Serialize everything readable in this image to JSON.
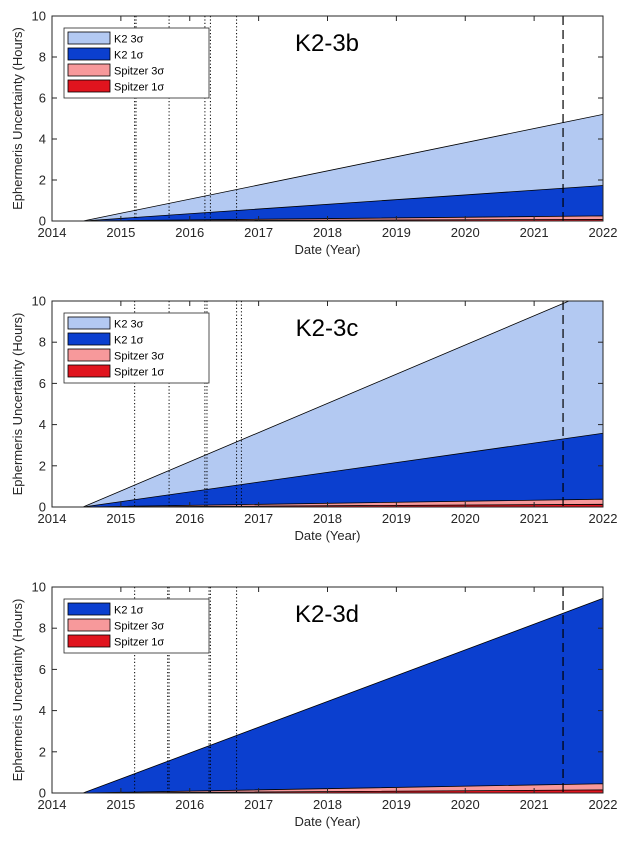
{
  "chart_data": [
    {
      "type": "area",
      "title": "K2-3b",
      "xlabel": "Date (Year)",
      "ylabel": "Ephermeris Uncertainty (Hours)",
      "xlim": [
        2014,
        2022
      ],
      "ylim": [
        0,
        10
      ],
      "xticks": [
        2014,
        2015,
        2016,
        2017,
        2018,
        2019,
        2020,
        2021,
        2022
      ],
      "yticks": [
        0,
        2,
        4,
        6,
        8,
        10
      ],
      "legend_position": "top-left",
      "x": [
        2014.45,
        2022.0
      ],
      "series": [
        {
          "name": "K2 3σ",
          "color": "#b3c9f2",
          "values": [
            0.0,
            5.2
          ]
        },
        {
          "name": "K2 1σ",
          "color": "#0b3fcf",
          "values": [
            0.0,
            1.73
          ]
        },
        {
          "name": "Spitzer 3σ",
          "color": "#f7999b",
          "values": [
            0.0,
            0.25
          ]
        },
        {
          "name": "Spitzer 1σ",
          "color": "#e0141e",
          "values": [
            0.0,
            0.08
          ]
        }
      ],
      "vlines_dotted": [
        2015.2,
        2015.22,
        2015.7,
        2016.22,
        2016.3,
        2016.68
      ],
      "vline_dashed": 2021.42
    },
    {
      "type": "area",
      "title": "K2-3c",
      "xlabel": "Date (Year)",
      "ylabel": "Ephermeris Uncertainty (Hours)",
      "xlim": [
        2014,
        2022
      ],
      "ylim": [
        0,
        10
      ],
      "xticks": [
        2014,
        2015,
        2016,
        2017,
        2018,
        2019,
        2020,
        2021,
        2022
      ],
      "yticks": [
        0,
        2,
        4,
        6,
        8,
        10
      ],
      "legend_position": "top-left",
      "x": [
        2014.45,
        2022.0
      ],
      "series": [
        {
          "name": "K2 3σ",
          "color": "#b3c9f2",
          "values": [
            0.0,
            10.7
          ]
        },
        {
          "name": "K2 1σ",
          "color": "#0b3fcf",
          "values": [
            0.0,
            3.58
          ]
        },
        {
          "name": "Spitzer 3σ",
          "color": "#f7999b",
          "values": [
            0.0,
            0.38
          ]
        },
        {
          "name": "Spitzer 1σ",
          "color": "#e0141e",
          "values": [
            0.0,
            0.13
          ]
        }
      ],
      "vlines_dotted": [
        2015.2,
        2015.7,
        2016.22,
        2016.25,
        2016.68,
        2016.75
      ],
      "vline_dashed": 2021.42
    },
    {
      "type": "area",
      "title": "K2-3d",
      "xlabel": "Date (Year)",
      "ylabel": "Ephermeris Uncertainty (Hours)",
      "xlim": [
        2014,
        2022
      ],
      "ylim": [
        0,
        10
      ],
      "xticks": [
        2014,
        2015,
        2016,
        2017,
        2018,
        2019,
        2020,
        2021,
        2022
      ],
      "yticks": [
        0,
        2,
        4,
        6,
        8,
        10
      ],
      "legend_position": "top-left",
      "x": [
        2014.45,
        2022.0
      ],
      "series": [
        {
          "name": "K2 1σ",
          "color": "#0b3fcf",
          "values": [
            0.0,
            9.45
          ]
        },
        {
          "name": "Spitzer 3σ",
          "color": "#f7999b",
          "values": [
            0.0,
            0.45
          ]
        },
        {
          "name": "Spitzer 1σ",
          "color": "#e0141e",
          "values": [
            0.0,
            0.15
          ]
        }
      ],
      "vlines_dotted": [
        2015.2,
        2015.68,
        2015.7,
        2016.28,
        2016.3,
        2016.68
      ],
      "vline_dashed": 2021.42
    }
  ]
}
